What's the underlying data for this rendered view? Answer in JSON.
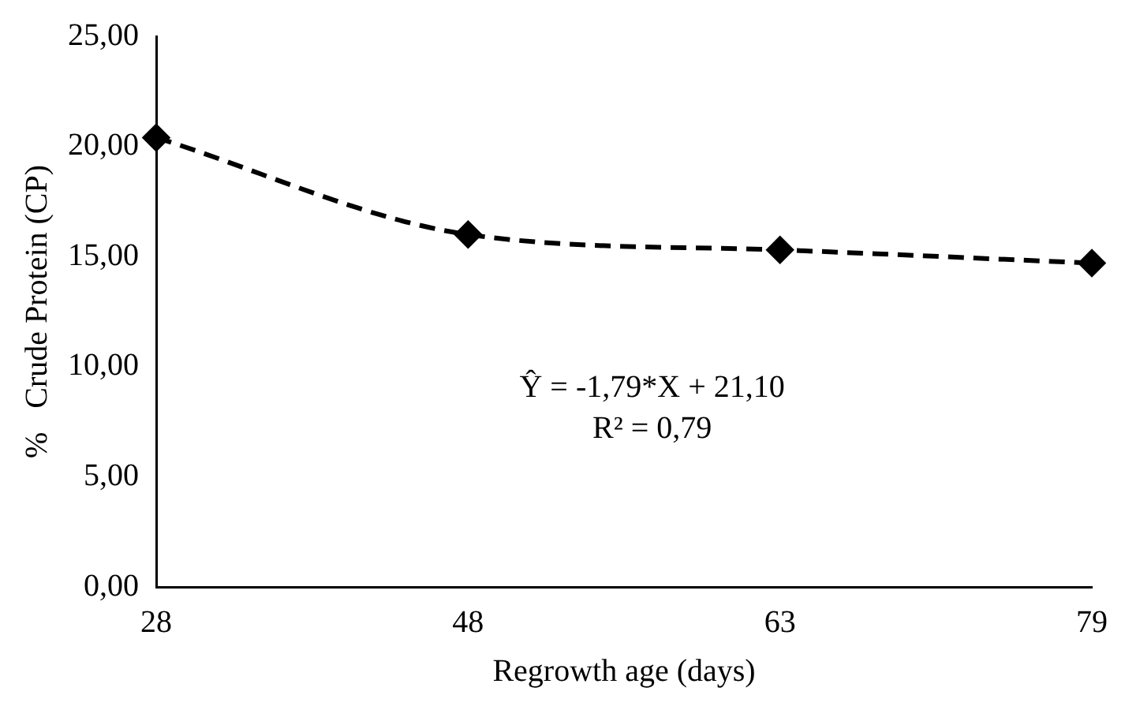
{
  "chart_data": {
    "type": "line",
    "xlabel": "Regrowth age (days)",
    "ylabel": "%   Crude Protein (CP)",
    "categories": [
      "28",
      "48",
      "63",
      "79"
    ],
    "series": [
      {
        "color": "#000000",
        "values": [
          20.4,
          16.0,
          15.3,
          14.7
        ]
      }
    ],
    "ylim": [
      0,
      25
    ],
    "yticks": [
      {
        "value": 0,
        "label": "0,00"
      },
      {
        "value": 5,
        "label": "5,00"
      },
      {
        "value": 10,
        "label": "10,00"
      },
      {
        "value": 15,
        "label": "15,00"
      },
      {
        "value": 20,
        "label": "20,00"
      },
      {
        "value": 25,
        "label": "25,00"
      }
    ],
    "grid": false,
    "legend": false,
    "marker": "diamond",
    "line_style": "dashed",
    "annotations": [
      "Ŷ = -1,79*X + 21,10",
      "R² = 0,79"
    ]
  }
}
